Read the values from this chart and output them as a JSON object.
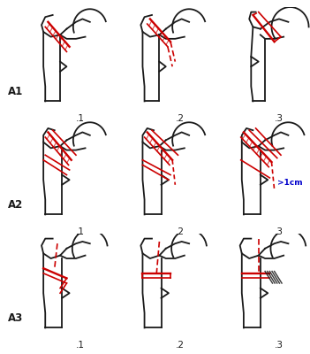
{
  "figsize": [
    3.51,
    4.0
  ],
  "dpi": 100,
  "background": "#ffffff",
  "bone_color": "#1a1a1a",
  "fracture_color": "#cc0000",
  "label_color_annotation": "#0000cc",
  "row_labels": [
    "A1",
    "A2",
    "A3"
  ],
  "col_labels": [
    ".1",
    ".2",
    ".3"
  ],
  "annotation_A23": ">1cm"
}
